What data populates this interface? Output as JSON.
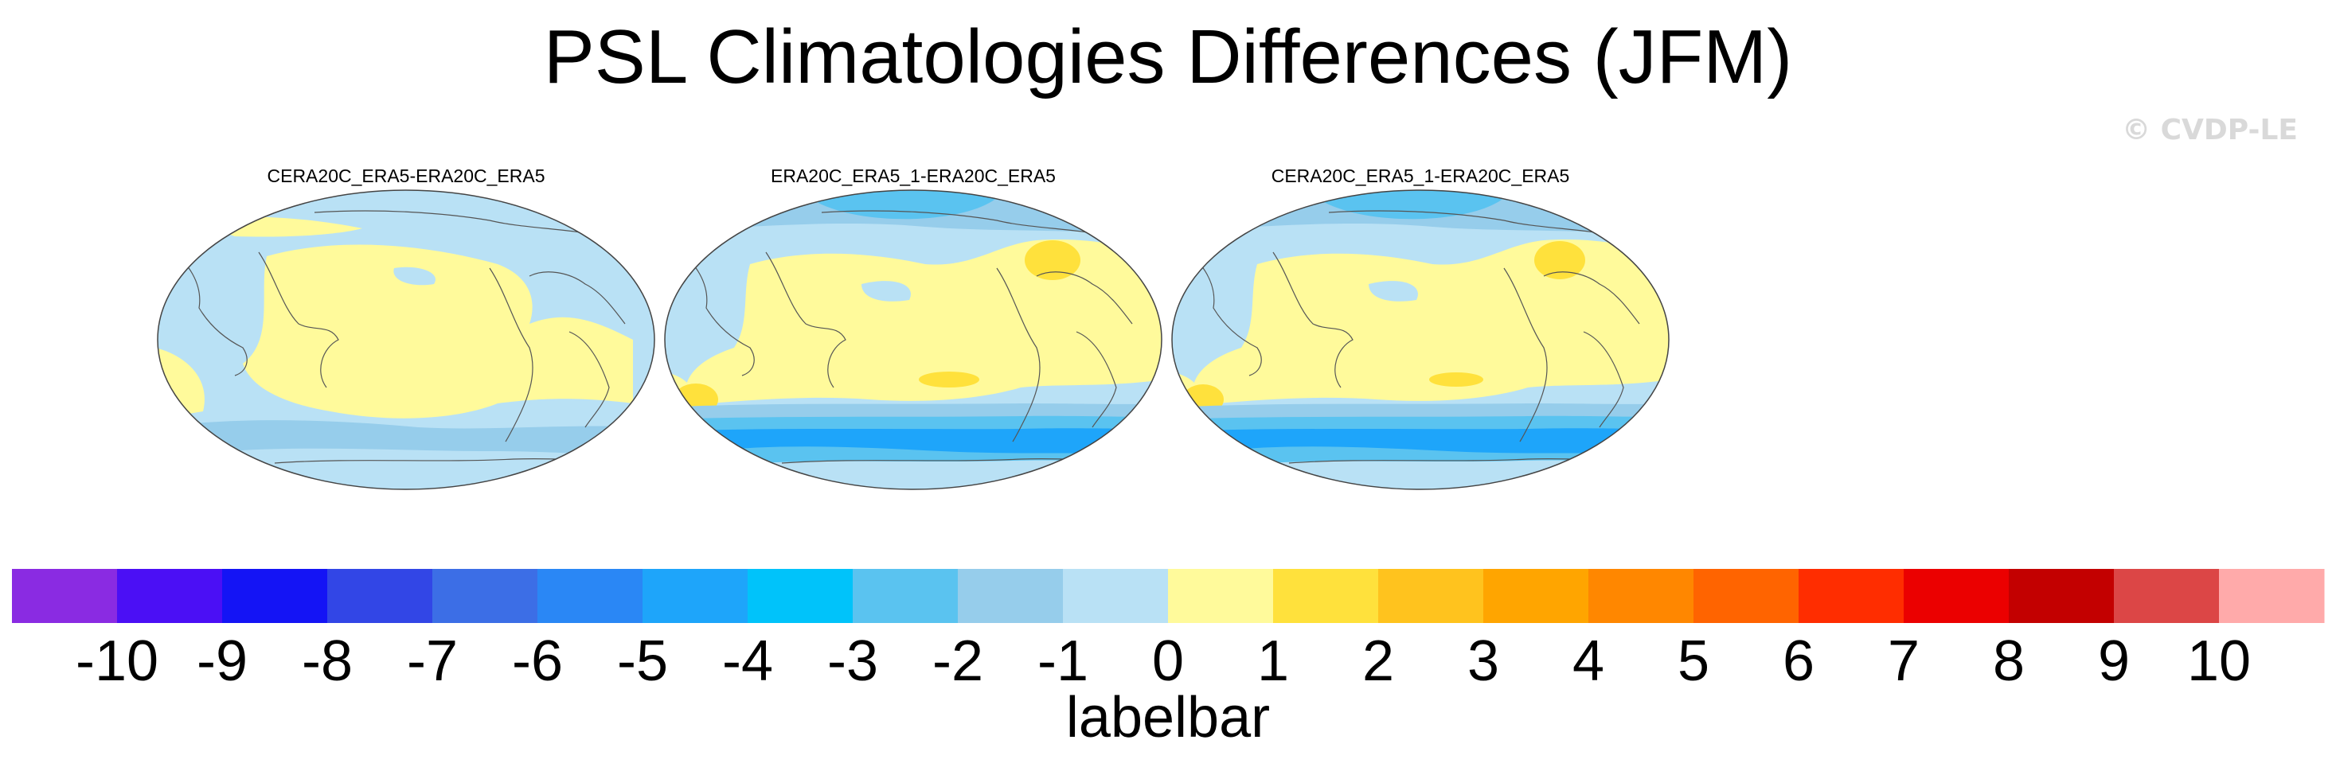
{
  "title": "PSL Climatologies Differences (JFM)",
  "credit": "© CVDP-LE",
  "panels": [
    {
      "title": "CERA20C_ERA5-ERA20C_ERA5"
    },
    {
      "title": "ERA20C_ERA5_1-ERA20C_ERA5"
    },
    {
      "title": "CERA20C_ERA5_1-ERA20C_ERA5"
    }
  ],
  "labelbar": {
    "title": "labelbar",
    "tick_labels": [
      "-10",
      "-9",
      "-8",
      "-7",
      "-6",
      "-5",
      "-4",
      "-3",
      "-2",
      "-1",
      "0",
      "1",
      "2",
      "3",
      "4",
      "5",
      "6",
      "7",
      "8",
      "9",
      "10"
    ],
    "colors": [
      "#8a2be2",
      "#4b0ff5",
      "#1414f5",
      "#3246e6",
      "#3c6ee6",
      "#2a87f5",
      "#1ea5fa",
      "#00c3fa",
      "#5ac3f0",
      "#96cdeb",
      "#b9e1f5",
      "#fffa9b",
      "#ffe13c",
      "#ffc31e",
      "#ffa500",
      "#ff8700",
      "#ff6400",
      "#ff2d00",
      "#eb0000",
      "#c30000",
      "#dc4646",
      "#ffaaaa"
    ]
  },
  "map_fill_colors": {
    "ocean_neg1": "#b9e1f5",
    "neg2": "#96cdeb",
    "neg3": "#5ac3f0",
    "neg4": "#1ea5fa",
    "pos1": "#fffa9b",
    "pos2": "#ffe13c",
    "coast": "#555555"
  }
}
